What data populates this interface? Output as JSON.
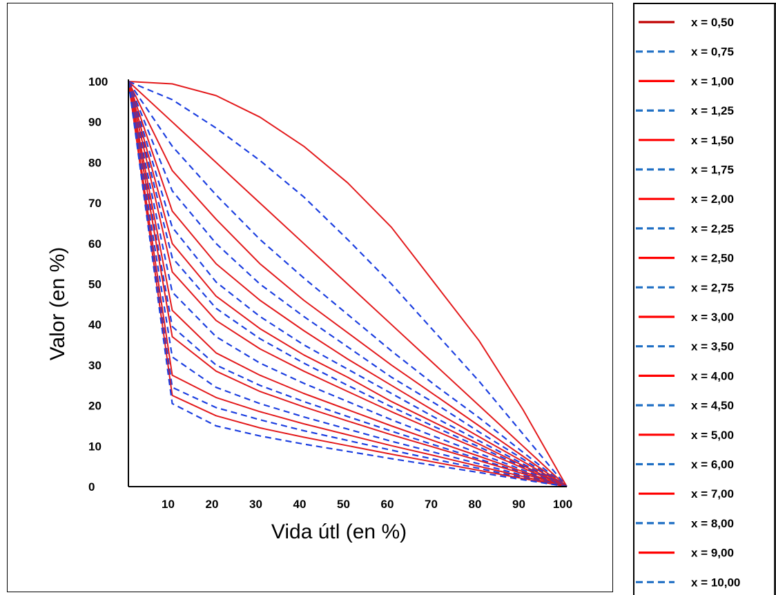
{
  "chart_data": {
    "type": "line",
    "title": "",
    "xlabel": "Vida útl (en %)",
    "ylabel": "Valor (en %)",
    "xlim": [
      0,
      100
    ],
    "ylim": [
      0,
      100
    ],
    "x_ticks": [
      10,
      20,
      30,
      40,
      50,
      60,
      70,
      80,
      90,
      100
    ],
    "y_ticks": [
      0,
      10,
      20,
      30,
      40,
      50,
      60,
      70,
      80,
      90,
      100
    ],
    "grid": false,
    "legend_position": "right",
    "x": [
      0,
      10,
      20,
      30,
      40,
      50,
      60,
      70,
      80,
      90,
      100
    ],
    "series": [
      {
        "name": "x = 0,50",
        "style": "solid",
        "color": "#e31a1c",
        "values": [
          100,
          99.4,
          96.5,
          91.2,
          84,
          75,
          64,
          50,
          36,
          19,
          0
        ]
      },
      {
        "name": "x = 0,75",
        "style": "dashed",
        "color": "#1c3fe0",
        "values": [
          100,
          95.5,
          88.5,
          80.5,
          71.5,
          61,
          50,
          38,
          26,
          13,
          0
        ]
      },
      {
        "name": "x = 1,00",
        "style": "solid",
        "color": "#e31a1c",
        "values": [
          100,
          90,
          80,
          70,
          60,
          50,
          40,
          30,
          20,
          10,
          0
        ]
      },
      {
        "name": "x = 1,25",
        "style": "dashed",
        "color": "#1c3fe0",
        "values": [
          100,
          84,
          72,
          61,
          51.5,
          42.5,
          33.5,
          25,
          17,
          8.5,
          0
        ]
      },
      {
        "name": "x = 1,50",
        "style": "solid",
        "color": "#e31a1c",
        "values": [
          100,
          78,
          66,
          55,
          46,
          38,
          30,
          22.5,
          15,
          7.5,
          0
        ]
      },
      {
        "name": "x = 1,75",
        "style": "dashed",
        "color": "#1c3fe0",
        "values": [
          100,
          73,
          60,
          50,
          42,
          34.5,
          27,
          20.5,
          13.5,
          6.8,
          0
        ]
      },
      {
        "name": "x = 2,00",
        "style": "solid",
        "color": "#e31a1c",
        "values": [
          100,
          68,
          55,
          46,
          38.5,
          31.5,
          25,
          18.5,
          12.3,
          6.2,
          0
        ]
      },
      {
        "name": "x = 2,25",
        "style": "dashed",
        "color": "#1c3fe0",
        "values": [
          100,
          64,
          50.5,
          42,
          35,
          29,
          23,
          17,
          11.3,
          5.6,
          0
        ]
      },
      {
        "name": "x = 2,50",
        "style": "solid",
        "color": "#e31a1c",
        "values": [
          100,
          60,
          47,
          39,
          32.5,
          27,
          21,
          15.7,
          10.5,
          5.2,
          0
        ]
      },
      {
        "name": "x = 2,75",
        "style": "dashed",
        "color": "#1c3fe0",
        "values": [
          100,
          56.5,
          44,
          36.5,
          30.5,
          25,
          19.7,
          14.7,
          9.8,
          4.9,
          0
        ]
      },
      {
        "name": "x = 3,00",
        "style": "solid",
        "color": "#e31a1c",
        "values": [
          100,
          53,
          41,
          34,
          28.5,
          23.5,
          18.5,
          13.8,
          9.2,
          4.6,
          0
        ]
      },
      {
        "name": "x = 3,50",
        "style": "dashed",
        "color": "#1c3fe0",
        "values": [
          100,
          48,
          37,
          30.5,
          25.5,
          21,
          16.5,
          12.3,
          8.2,
          4.1,
          0
        ]
      },
      {
        "name": "x = 4,00",
        "style": "solid",
        "color": "#e31a1c",
        "values": [
          100,
          43.5,
          33,
          27.5,
          23,
          19,
          15,
          11.2,
          7.5,
          3.7,
          0
        ]
      },
      {
        "name": "x = 4,50",
        "style": "dashed",
        "color": "#1c3fe0",
        "values": [
          100,
          39.5,
          30,
          25,
          21,
          17.3,
          13.7,
          10.2,
          6.8,
          3.4,
          0
        ]
      },
      {
        "name": "x = 5,00",
        "style": "solid",
        "color": "#e31a1c",
        "values": [
          100,
          37,
          28.5,
          23.5,
          19.7,
          16.2,
          12.8,
          9.6,
          6.4,
          3.2,
          0
        ]
      },
      {
        "name": "x = 6,00",
        "style": "dashed",
        "color": "#1c3fe0",
        "values": [
          100,
          32,
          24.5,
          20.5,
          17.2,
          14.2,
          11.2,
          8.4,
          5.6,
          2.8,
          0
        ]
      },
      {
        "name": "x = 7,00",
        "style": "solid",
        "color": "#e31a1c",
        "values": [
          100,
          27.5,
          22,
          18.5,
          15.5,
          12.8,
          10.1,
          7.6,
          5,
          2.5,
          0
        ]
      },
      {
        "name": "x = 8,00",
        "style": "dashed",
        "color": "#1c3fe0",
        "values": [
          100,
          24.5,
          19.5,
          16.5,
          13.8,
          11.4,
          9,
          6.7,
          4.5,
          2.2,
          0
        ]
      },
      {
        "name": "x = 9,00",
        "style": "solid",
        "color": "#e31a1c",
        "values": [
          100,
          22.5,
          17.5,
          14.5,
          12.2,
          10.1,
          8,
          6,
          4,
          2,
          0
        ]
      },
      {
        "name": "x = 10,00",
        "style": "dashed",
        "color": "#1c3fe0",
        "values": [
          100,
          20.5,
          15,
          12.5,
          10.5,
          8.7,
          6.9,
          5.2,
          3.5,
          1.7,
          0
        ]
      }
    ]
  },
  "legend": {
    "items": [
      {
        "label": "x = 0,50",
        "style": "solid",
        "color": "#c00000"
      },
      {
        "label": "x = 0,75",
        "style": "dashed",
        "color": "#1f6fc4"
      },
      {
        "label": "x = 1,00",
        "style": "solid",
        "color": "#ff0000"
      },
      {
        "label": "x = 1,25",
        "style": "dashed",
        "color": "#1f6fc4"
      },
      {
        "label": "x = 1,50",
        "style": "solid",
        "color": "#ff0000"
      },
      {
        "label": "x = 1,75",
        "style": "dashed",
        "color": "#1f6fc4"
      },
      {
        "label": "x = 2,00",
        "style": "solid",
        "color": "#ff0000"
      },
      {
        "label": "x = 2,25",
        "style": "dashed",
        "color": "#1f6fc4"
      },
      {
        "label": "x = 2,50",
        "style": "solid",
        "color": "#ff0000"
      },
      {
        "label": "x = 2,75",
        "style": "dashed",
        "color": "#1f6fc4"
      },
      {
        "label": "x = 3,00",
        "style": "solid",
        "color": "#ff0000"
      },
      {
        "label": "x = 3,50",
        "style": "dashed",
        "color": "#1f6fc4"
      },
      {
        "label": "x = 4,00",
        "style": "solid",
        "color": "#ff0000"
      },
      {
        "label": "x = 4,50",
        "style": "dashed",
        "color": "#1f6fc4"
      },
      {
        "label": "x = 5,00",
        "style": "solid",
        "color": "#ff0000"
      },
      {
        "label": "x = 6,00",
        "style": "dashed",
        "color": "#1f6fc4"
      },
      {
        "label": "x = 7,00",
        "style": "solid",
        "color": "#ff0000"
      },
      {
        "label": "x = 8,00",
        "style": "dashed",
        "color": "#1f6fc4"
      },
      {
        "label": "x = 9,00",
        "style": "solid",
        "color": "#ff0000"
      },
      {
        "label": "x = 10,00",
        "style": "dashed",
        "color": "#1f6fc4"
      }
    ]
  }
}
